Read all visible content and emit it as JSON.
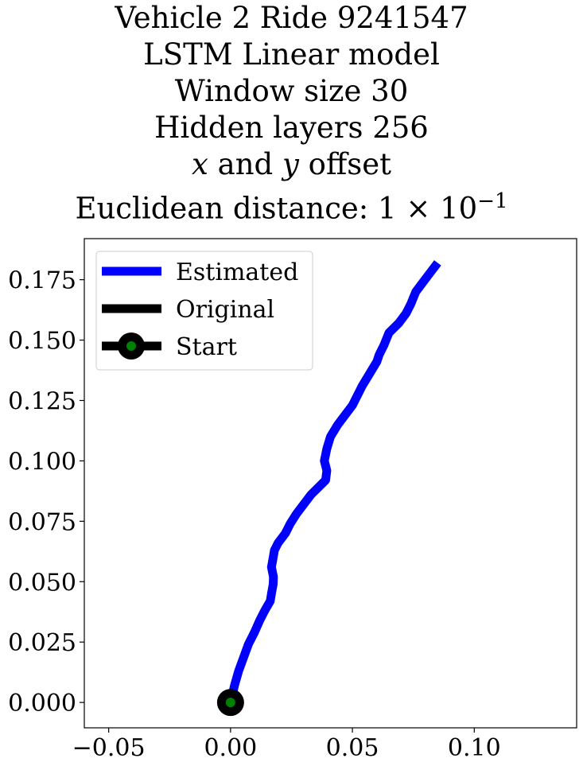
{
  "chart_data": {
    "type": "line",
    "title_lines": [
      "Vehicle 2 Ride 9241547",
      "LSTM Linear model",
      "Window size 30",
      "Hidden layers 256"
    ],
    "offset_line": {
      "x": "x",
      "and": " and ",
      "y": "y",
      "rest": " offset"
    },
    "distance_line": {
      "label": "Euclidean distance: 1 × 10",
      "exp": "−1"
    },
    "xlabel": "",
    "ylabel": "",
    "xlim": [
      -0.06,
      0.142
    ],
    "ylim": [
      -0.0105,
      0.192
    ],
    "xticks": [
      -0.05,
      0.0,
      0.05,
      0.1
    ],
    "xtick_labels": [
      "−0.05",
      "0.00",
      "0.05",
      "0.10"
    ],
    "yticks": [
      0.0,
      0.025,
      0.05,
      0.075,
      0.1,
      0.125,
      0.15,
      0.175
    ],
    "ytick_labels": [
      "0.000",
      "0.025",
      "0.050",
      "0.075",
      "0.100",
      "0.125",
      "0.150",
      "0.175"
    ],
    "grid": false,
    "legend_position": "top-left",
    "series": [
      {
        "name": "Estimated",
        "color": "#0000ff",
        "x": [
          0.0,
          0.0016,
          0.0033,
          0.0055,
          0.0073,
          0.0098,
          0.012,
          0.014,
          0.0163,
          0.0168,
          0.0175,
          0.0176,
          0.0168,
          0.0175,
          0.018,
          0.0195,
          0.0225,
          0.0245,
          0.027,
          0.03,
          0.033,
          0.036,
          0.039,
          0.0395,
          0.0385,
          0.0395,
          0.041,
          0.044,
          0.047,
          0.05,
          0.052,
          0.054,
          0.057,
          0.06,
          0.061,
          0.063,
          0.065,
          0.069,
          0.072,
          0.074,
          0.076,
          0.079,
          0.082,
          0.085
        ],
        "y": [
          0.0,
          0.007,
          0.013,
          0.019,
          0.024,
          0.029,
          0.034,
          0.038,
          0.042,
          0.045,
          0.049,
          0.052,
          0.056,
          0.06,
          0.063,
          0.066,
          0.07,
          0.074,
          0.078,
          0.082,
          0.086,
          0.089,
          0.092,
          0.096,
          0.1,
          0.105,
          0.11,
          0.115,
          0.119,
          0.123,
          0.127,
          0.131,
          0.136,
          0.141,
          0.144,
          0.148,
          0.153,
          0.157,
          0.161,
          0.165,
          0.17,
          0.174,
          0.178,
          0.182
        ]
      },
      {
        "name": "Original",
        "color": "#000000",
        "x": [],
        "y": []
      },
      {
        "name": "Start",
        "color": "#000000",
        "marker_face": "#008000",
        "x": [
          0.0
        ],
        "y": [
          0.0
        ]
      }
    ]
  }
}
